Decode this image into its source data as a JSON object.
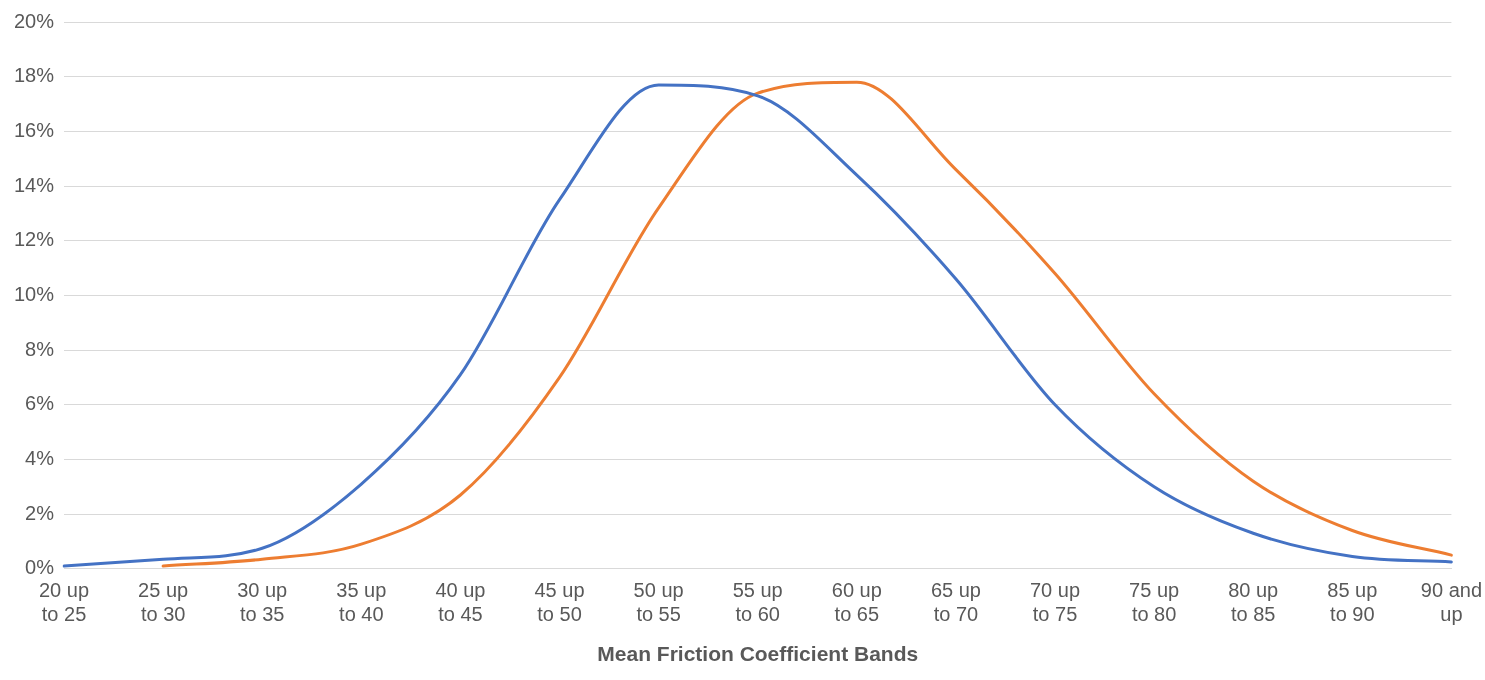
{
  "chart_data": {
    "type": "line",
    "xlabel": "Mean Friction Coefficient Bands",
    "categories": [
      "20 up to 25",
      "25 up to 30",
      "30 up to 35",
      "35 up to 40",
      "40 up to 45",
      "45 up to 50",
      "50 up to 55",
      "55 up to 60",
      "60 up to 65",
      "65 up to 70",
      "70 up to 75",
      "75 up to 80",
      "80 up to 85",
      "85 up to 90",
      "90 and up"
    ],
    "series": [
      {
        "color": "#4472c4",
        "values": [
          0.1,
          0.35,
          0.75,
          3.1,
          7.1,
          13.5,
          17.7,
          17.3,
          14.4,
          10.6,
          6.0,
          3.0,
          1.3,
          0.45,
          0.25
        ]
      },
      {
        "color": "#ed7d31",
        "values": [
          null,
          0.1,
          0.35,
          0.9,
          2.7,
          7.0,
          13.2,
          17.4,
          17.8,
          14.6,
          10.8,
          6.4,
          3.2,
          1.4,
          0.5
        ]
      }
    ],
    "ylim": [
      0,
      20
    ],
    "yticks": [
      {
        "value": 0,
        "label": "0%"
      },
      {
        "value": 2,
        "label": "2%"
      },
      {
        "value": 4,
        "label": "4%"
      },
      {
        "value": 6,
        "label": "6%"
      },
      {
        "value": 8,
        "label": "8%"
      },
      {
        "value": 10,
        "label": "10%"
      },
      {
        "value": 12,
        "label": "12%"
      },
      {
        "value": 14,
        "label": "14%"
      },
      {
        "value": 16,
        "label": "16%"
      },
      {
        "value": 18,
        "label": "18%"
      },
      {
        "value": 20,
        "label": "20%"
      }
    ],
    "grid": "y",
    "legend": false,
    "marker": "none",
    "line_style": "solid"
  }
}
